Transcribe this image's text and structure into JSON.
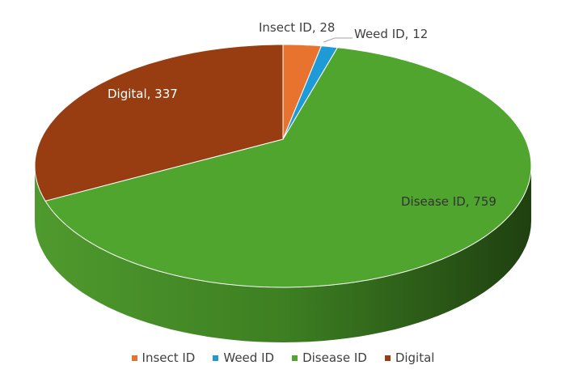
{
  "chart_data": {
    "type": "pie",
    "variant": "3d",
    "title": "",
    "categories": [
      "Insect ID",
      "Weed ID",
      "Disease ID",
      "Digital"
    ],
    "values": [
      28,
      12,
      759,
      337
    ],
    "colors": [
      "#E8732F",
      "#1E9AD6",
      "#4FA52E",
      "#983D12"
    ],
    "data_labels": [
      "Insect ID, 28",
      "Weed ID, 12",
      "Disease ID, 759",
      "Digital, 337"
    ],
    "legend_position": "bottom"
  }
}
